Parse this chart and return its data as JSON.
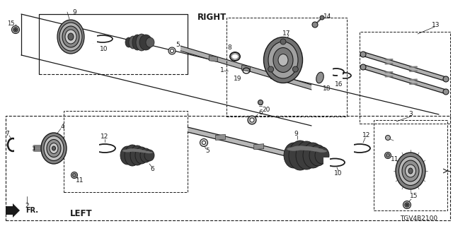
{
  "bg_color": "#ffffff",
  "lc": "#1a1a1a",
  "diagram_id": "TGV4B2100",
  "right_label": "RIGHT",
  "left_label": "LEFT",
  "fr_label": "FR."
}
